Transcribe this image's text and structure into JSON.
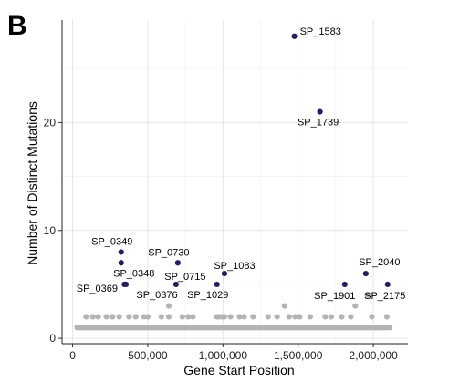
{
  "panel_label": "B",
  "chart_data": {
    "type": "scatter",
    "xlabel": "Gene Start Position",
    "ylabel": "Number of Distinct Mutations",
    "xlim": [
      -70000,
      2230000
    ],
    "ylim": [
      -0.5,
      29.5
    ],
    "x_ticks": [
      0,
      500000,
      1000000,
      1500000,
      2000000
    ],
    "x_tick_labels": [
      "0",
      "500,000",
      "1,000,000",
      "1,500,000",
      "2,000,000"
    ],
    "y_ticks": [
      0,
      10,
      20
    ],
    "y_tick_labels": [
      "0",
      "10",
      "20"
    ],
    "grid": true,
    "colors": {
      "highlight": "#2b1b5a",
      "background": "#b4b4b4"
    },
    "highlighted_points": [
      {
        "name": "SP_1583",
        "x": 1475000,
        "y": 28
      },
      {
        "name": "SP_1739",
        "x": 1645000,
        "y": 21
      },
      {
        "name": "SP_0349",
        "x": 323000,
        "y": 8
      },
      {
        "name": "SP_0348",
        "x": 323000,
        "y": 7
      },
      {
        "name": "SP_0369",
        "x": 345000,
        "y": 5
      },
      {
        "name": "SP_0376",
        "x": 355000,
        "y": 5
      },
      {
        "name": "SP_0730",
        "x": 700000,
        "y": 7
      },
      {
        "name": "SP_0715",
        "x": 688000,
        "y": 5
      },
      {
        "name": "SP_1029",
        "x": 960000,
        "y": 5
      },
      {
        "name": "SP_1083",
        "x": 1010000,
        "y": 6
      },
      {
        "name": "SP_1901",
        "x": 1810000,
        "y": 5
      },
      {
        "name": "SP_2040",
        "x": 1950000,
        "y": 6
      },
      {
        "name": "SP_2175",
        "x": 2095000,
        "y": 5
      }
    ],
    "background_points": {
      "y1_x_range": [
        30000,
        2110000
      ],
      "y2_x": [
        90000,
        135000,
        170000,
        225000,
        265000,
        310000,
        375000,
        420000,
        475000,
        500000,
        590000,
        640000,
        730000,
        770000,
        800000,
        960000,
        975000,
        990000,
        1000000,
        1010000,
        1050000,
        1110000,
        1140000,
        1200000,
        1300000,
        1360000,
        1440000,
        1480000,
        1510000,
        1580000,
        1680000,
        1720000,
        1790000,
        1850000,
        1990000,
        2090000
      ],
      "y3_x": [
        640000,
        1410000,
        1880000
      ],
      "y4_x": [
        1960000
      ]
    }
  }
}
